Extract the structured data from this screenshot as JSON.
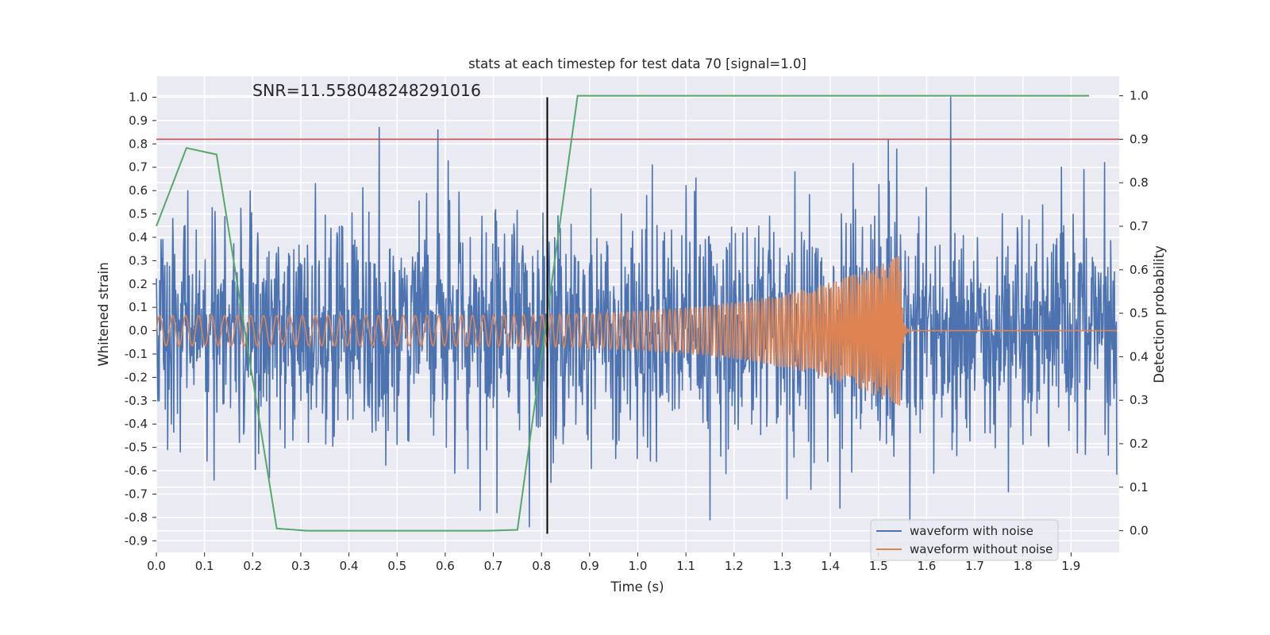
{
  "chart_data": {
    "type": "line",
    "title": "stats at each timestep for test data 70 [signal=1.0]",
    "xlabel": "Time (s)",
    "ylabel": "Whitened strain",
    "y2label": "Detection probability",
    "annotation": "SNR=11.558048248291016",
    "xlim": [
      0.0,
      2.0
    ],
    "ylim": [
      -0.95,
      1.09
    ],
    "y2lim": [
      -0.05,
      1.045
    ],
    "xticks": [
      "0.0",
      "0.1",
      "0.2",
      "0.3",
      "0.4",
      "0.5",
      "0.6",
      "0.7",
      "0.8",
      "0.9",
      "1.0",
      "1.1",
      "1.2",
      "1.3",
      "1.4",
      "1.5",
      "1.6",
      "1.7",
      "1.8",
      "1.9"
    ],
    "xtick_values": [
      0.0,
      0.1,
      0.2,
      0.3,
      0.4,
      0.5,
      0.6,
      0.7,
      0.8,
      0.9,
      1.0,
      1.1,
      1.2,
      1.3,
      1.4,
      1.5,
      1.6,
      1.7,
      1.8,
      1.9
    ],
    "yticks": [
      "1.0",
      "0.9",
      "0.8",
      "0.7",
      "0.6",
      "0.5",
      "0.4",
      "0.3",
      "0.2",
      "0.1",
      "0.0",
      "-0.1",
      "-0.2",
      "-0.3",
      "-0.4",
      "-0.5",
      "-0.6",
      "-0.7",
      "-0.8",
      "-0.9"
    ],
    "ytick_values": [
      1.0,
      0.9,
      0.8,
      0.7,
      0.6,
      0.5,
      0.4,
      0.3,
      0.2,
      0.1,
      0.0,
      -0.1,
      -0.2,
      -0.3,
      -0.4,
      -0.5,
      -0.6,
      -0.7,
      -0.8,
      -0.9
    ],
    "y2ticks": [
      "1.0",
      "0.9",
      "0.8",
      "0.7",
      "0.6",
      "0.5",
      "0.4",
      "0.3",
      "0.2",
      "0.1",
      "0.0"
    ],
    "y2tick_values": [
      1.0,
      0.9,
      0.8,
      0.7,
      0.6,
      0.5,
      0.4,
      0.3,
      0.2,
      0.1,
      0.0
    ],
    "legend": {
      "placement": "lower-right",
      "entries": [
        "waveform with noise",
        "waveform without noise"
      ]
    },
    "series": [
      {
        "name": "waveform with noise",
        "axis": "left",
        "color": "#4c72b0",
        "kind": "noise",
        "n_samples": 2048,
        "noise_std": 0.22,
        "spikes": [
          {
            "x": 0.463,
            "y": 0.87
          },
          {
            "x": 0.585,
            "y": 0.86
          },
          {
            "x": 0.775,
            "y": -0.84
          },
          {
            "x": 0.672,
            "y": -0.77
          },
          {
            "x": 0.708,
            "y": -0.78
          },
          {
            "x": 0.82,
            "y": 0.76
          },
          {
            "x": 0.82,
            "y": -0.65
          },
          {
            "x": 1.15,
            "y": -0.81
          },
          {
            "x": 1.52,
            "y": 0.82
          },
          {
            "x": 1.65,
            "y": 1.0
          },
          {
            "x": 1.565,
            "y": -0.82
          },
          {
            "x": 1.31,
            "y": -0.72
          },
          {
            "x": 1.88,
            "y": 0.7
          },
          {
            "x": 1.97,
            "y": 0.72
          },
          {
            "x": 1.93,
            "y": -0.53
          },
          {
            "x": 0.065,
            "y": 0.6
          },
          {
            "x": 0.12,
            "y": -0.64
          },
          {
            "x": 0.235,
            "y": -0.63
          },
          {
            "x": 0.33,
            "y": 0.63
          },
          {
            "x": 1.03,
            "y": 0.71
          },
          {
            "x": 1.36,
            "y": -0.68
          },
          {
            "x": 1.42,
            "y": -0.76
          },
          {
            "x": 1.77,
            "y": -0.69
          }
        ]
      },
      {
        "name": "waveform without noise",
        "axis": "left",
        "color": "#dd8452",
        "kind": "chirp",
        "t_merger": 1.545,
        "amp_start": 0.065,
        "amp_peak": 0.32,
        "f_start": 37,
        "f_end": 260
      },
      {
        "name": "detection probability",
        "axis": "right",
        "color": "#55a868",
        "x": [
          0.0,
          0.0625,
          0.125,
          0.25,
          0.3125,
          0.375,
          0.4375,
          0.5,
          0.5625,
          0.625,
          0.6875,
          0.75,
          0.875,
          0.9375,
          1.0,
          1.0625,
          1.125,
          1.1875,
          1.25,
          1.3125,
          1.375,
          1.4375,
          1.5,
          1.5625,
          1.625,
          1.6875,
          1.75,
          1.8125,
          1.875,
          1.9375
        ],
        "y": [
          0.7,
          0.88,
          0.865,
          0.005,
          0.0,
          0.0,
          0.0,
          0.0,
          0.0,
          0.0,
          0.0,
          0.002,
          1.0,
          1.0,
          1.0,
          1.0,
          1.0,
          1.0,
          1.0,
          1.0,
          1.0,
          1.0,
          1.0,
          1.0,
          1.0,
          1.0,
          1.0,
          1.0,
          1.0,
          1.0
        ]
      }
    ],
    "threshold": {
      "axis": "right",
      "value": 0.9,
      "color": "#c44e52"
    },
    "vline": {
      "x": 0.812,
      "ymin": -0.87,
      "ymax": 1.0,
      "color": "#000000"
    }
  }
}
